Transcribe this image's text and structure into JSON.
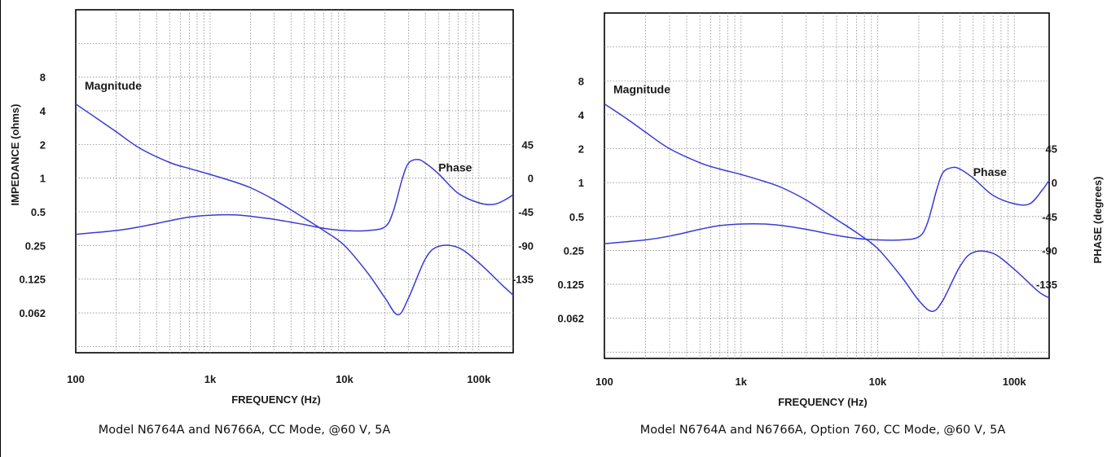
{
  "colors": {
    "curve": "#3a3ad6",
    "grid": "#8a8a8a",
    "frame": "#000000",
    "text": "#1a1a1a"
  },
  "chart_data": [
    {
      "type": "line",
      "caption": "Model N6764A and N6766A, CC Mode, @60 V, 5A",
      "xlabel": "FREQUENCY (Hz)",
      "ylabel": "IMPEDANCE (ohms)",
      "y2label": "",
      "x_scale": "log",
      "xlim": [
        100,
        180000
      ],
      "x_ticks": [
        {
          "v": 100,
          "label": "100"
        },
        {
          "v": 1000,
          "label": "1k"
        },
        {
          "v": 10000,
          "label": "10k"
        },
        {
          "v": 100000,
          "label": "100k"
        }
      ],
      "y_scale": "log2",
      "ylim": [
        0.0275,
        32
      ],
      "y_ticks": [
        {
          "v": 8,
          "label": "8"
        },
        {
          "v": 4,
          "label": "4"
        },
        {
          "v": 2,
          "label": "2"
        },
        {
          "v": 1,
          "label": "1"
        },
        {
          "v": 0.5,
          "label": "0.5"
        },
        {
          "v": 0.25,
          "label": "0.25"
        },
        {
          "v": 0.125,
          "label": "0.125"
        },
        {
          "v": 0.0625,
          "label": "0.062"
        }
      ],
      "y2_ticks": [
        {
          "v": 45,
          "label": "45"
        },
        {
          "v": 0,
          "label": "0"
        },
        {
          "v": -45,
          "label": "-45"
        },
        {
          "v": -90,
          "label": "-90"
        },
        {
          "v": -135,
          "label": "-135"
        }
      ],
      "grid": true,
      "series": [
        {
          "name": "Magnitude",
          "axis": "left",
          "x": [
            100,
            150,
            200,
            300,
            500,
            700,
            1000,
            1500,
            2000,
            3000,
            5000,
            7000,
            10000,
            15000,
            20000,
            25000,
            30000,
            40000,
            50000,
            70000,
            100000,
            150000,
            180000
          ],
          "y": [
            4.6,
            3.3,
            2.6,
            1.85,
            1.38,
            1.22,
            1.08,
            0.93,
            0.82,
            0.64,
            0.44,
            0.34,
            0.25,
            0.14,
            0.085,
            0.06,
            0.085,
            0.19,
            0.245,
            0.24,
            0.175,
            0.11,
            0.09
          ]
        },
        {
          "name": "Phase",
          "axis": "right",
          "x": [
            100,
            200,
            300,
            500,
            700,
            1000,
            1500,
            2000,
            3000,
            5000,
            7000,
            10000,
            15000,
            20000,
            23000,
            27000,
            30000,
            35000,
            40000,
            50000,
            70000,
            100000,
            130000,
            160000,
            180000
          ],
          "y": [
            -75,
            -70,
            -65,
            -57,
            -52,
            -49.5,
            -49,
            -51,
            -55,
            -62,
            -67,
            -70,
            -70,
            -65,
            -45,
            0,
            20,
            25,
            20,
            6,
            -20,
            -33,
            -35,
            -28,
            -22
          ]
        }
      ]
    },
    {
      "type": "line",
      "caption": "Model N6764A and N6766A, Option 760, CC Mode, @60 V, 5A",
      "xlabel": "FREQUENCY (Hz)",
      "ylabel": "",
      "y2label": "PHASE (degrees)",
      "x_scale": "log",
      "xlim": [
        100,
        180000
      ],
      "x_ticks": [
        {
          "v": 100,
          "label": "100"
        },
        {
          "v": 1000,
          "label": "1k"
        },
        {
          "v": 10000,
          "label": "10k"
        },
        {
          "v": 100000,
          "label": "100k"
        }
      ],
      "y_scale": "log2",
      "ylim": [
        0.0275,
        32
      ],
      "y_ticks": [
        {
          "v": 8,
          "label": "8"
        },
        {
          "v": 4,
          "label": "4"
        },
        {
          "v": 2,
          "label": "2"
        },
        {
          "v": 1,
          "label": "1"
        },
        {
          "v": 0.5,
          "label": "0.5"
        },
        {
          "v": 0.25,
          "label": "0.25"
        },
        {
          "v": 0.125,
          "label": "0.125"
        },
        {
          "v": 0.0625,
          "label": "0.062"
        }
      ],
      "y2_ticks": [
        {
          "v": 45,
          "label": "45"
        },
        {
          "v": 0,
          "label": "0"
        },
        {
          "v": -45,
          "label": "-45"
        },
        {
          "v": -90,
          "label": "-90"
        },
        {
          "v": -135,
          "label": "-135"
        }
      ],
      "grid": true,
      "series": [
        {
          "name": "Magnitude",
          "axis": "left",
          "x": [
            100,
            150,
            200,
            300,
            500,
            700,
            1000,
            1500,
            2000,
            3000,
            5000,
            7000,
            10000,
            15000,
            20000,
            25000,
            30000,
            40000,
            50000,
            70000,
            100000,
            150000,
            180000
          ],
          "y": [
            5.0,
            3.6,
            2.8,
            2.0,
            1.5,
            1.32,
            1.18,
            1.02,
            0.9,
            0.7,
            0.47,
            0.36,
            0.26,
            0.145,
            0.09,
            0.072,
            0.09,
            0.18,
            0.24,
            0.235,
            0.17,
            0.108,
            0.095
          ]
        },
        {
          "name": "Phase",
          "axis": "right",
          "x": [
            100,
            200,
            300,
            500,
            700,
            1000,
            1500,
            2000,
            3000,
            5000,
            7000,
            10000,
            15000,
            20000,
            23000,
            27000,
            30000,
            35000,
            40000,
            50000,
            70000,
            100000,
            130000,
            160000,
            180000
          ],
          "y": [
            -81,
            -76,
            -71,
            -62,
            -57,
            -55,
            -55,
            -57,
            -62,
            -70,
            -74,
            -76,
            -76,
            -72,
            -55,
            -10,
            13,
            20,
            18,
            6,
            -17,
            -28,
            -28,
            -10,
            3
          ]
        }
      ]
    }
  ]
}
